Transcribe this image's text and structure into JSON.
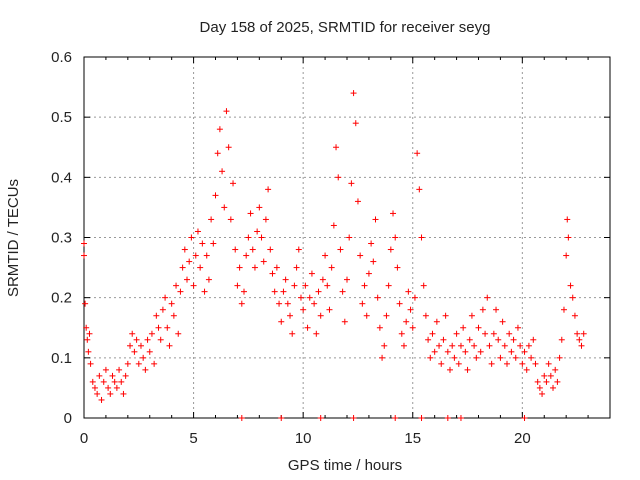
{
  "chart_data": {
    "type": "scatter",
    "title": "Day 158 of 2025, SRMTID for receiver seyg",
    "xlabel": "GPS time / hours",
    "ylabel": "SRMTID / TECUs",
    "xlim": [
      0,
      24
    ],
    "ylim": [
      0,
      0.6
    ],
    "xticks": [
      0,
      5,
      10,
      15,
      20
    ],
    "xtick_labels": [
      "0",
      "5",
      "10",
      "15",
      "20"
    ],
    "yticks": [
      0,
      0.1,
      0.2,
      0.3,
      0.4,
      0.5,
      0.6
    ],
    "ytick_labels": [
      "0",
      "0.1",
      "0.2",
      "0.3",
      "0.4",
      "0.5",
      "0.6"
    ],
    "grid": true,
    "marker": "+",
    "color": "#ff0000",
    "series": [
      {
        "name": "SRMTID",
        "points": [
          [
            0.0,
            0.27
          ],
          [
            0.0,
            0.29
          ],
          [
            0.05,
            0.19
          ],
          [
            0.1,
            0.15
          ],
          [
            0.15,
            0.13
          ],
          [
            0.2,
            0.11
          ],
          [
            0.25,
            0.14
          ],
          [
            0.3,
            0.09
          ],
          [
            0.4,
            0.06
          ],
          [
            0.5,
            0.05
          ],
          [
            0.6,
            0.04
          ],
          [
            0.7,
            0.07
          ],
          [
            0.8,
            0.03
          ],
          [
            0.9,
            0.06
          ],
          [
            1.0,
            0.08
          ],
          [
            1.1,
            0.05
          ],
          [
            1.2,
            0.04
          ],
          [
            1.3,
            0.07
          ],
          [
            1.4,
            0.06
          ],
          [
            1.5,
            0.05
          ],
          [
            1.6,
            0.08
          ],
          [
            1.7,
            0.06
          ],
          [
            1.8,
            0.04
          ],
          [
            1.9,
            0.07
          ],
          [
            2.0,
            0.09
          ],
          [
            2.1,
            0.12
          ],
          [
            2.2,
            0.14
          ],
          [
            2.3,
            0.11
          ],
          [
            2.4,
            0.13
          ],
          [
            2.5,
            0.09
          ],
          [
            2.6,
            0.12
          ],
          [
            2.7,
            0.1
          ],
          [
            2.8,
            0.08
          ],
          [
            2.9,
            0.13
          ],
          [
            3.0,
            0.11
          ],
          [
            3.1,
            0.14
          ],
          [
            3.2,
            0.09
          ],
          [
            3.3,
            0.17
          ],
          [
            3.4,
            0.15
          ],
          [
            3.5,
            0.13
          ],
          [
            3.6,
            0.18
          ],
          [
            3.7,
            0.2
          ],
          [
            3.8,
            0.15
          ],
          [
            3.9,
            0.12
          ],
          [
            4.0,
            0.19
          ],
          [
            4.1,
            0.17
          ],
          [
            4.2,
            0.22
          ],
          [
            4.3,
            0.14
          ],
          [
            4.4,
            0.21
          ],
          [
            4.5,
            0.25
          ],
          [
            4.6,
            0.28
          ],
          [
            4.7,
            0.23
          ],
          [
            4.8,
            0.26
          ],
          [
            4.9,
            0.3
          ],
          [
            5.0,
            0.22
          ],
          [
            5.1,
            0.27
          ],
          [
            5.2,
            0.31
          ],
          [
            5.3,
            0.25
          ],
          [
            5.4,
            0.29
          ],
          [
            5.5,
            0.21
          ],
          [
            5.6,
            0.27
          ],
          [
            5.7,
            0.23
          ],
          [
            5.8,
            0.33
          ],
          [
            5.9,
            0.29
          ],
          [
            6.0,
            0.37
          ],
          [
            6.1,
            0.44
          ],
          [
            6.2,
            0.48
          ],
          [
            6.3,
            0.41
          ],
          [
            6.4,
            0.35
          ],
          [
            6.5,
            0.51
          ],
          [
            6.6,
            0.45
          ],
          [
            6.7,
            0.33
          ],
          [
            6.8,
            0.39
          ],
          [
            6.9,
            0.28
          ],
          [
            7.0,
            0.22
          ],
          [
            7.1,
            0.25
          ],
          [
            7.2,
            0.19
          ],
          [
            7.3,
            0.21
          ],
          [
            7.4,
            0.27
          ],
          [
            7.5,
            0.3
          ],
          [
            7.6,
            0.34
          ],
          [
            7.7,
            0.28
          ],
          [
            7.8,
            0.25
          ],
          [
            7.9,
            0.31
          ],
          [
            8.0,
            0.35
          ],
          [
            8.1,
            0.3
          ],
          [
            8.2,
            0.26
          ],
          [
            8.3,
            0.33
          ],
          [
            8.4,
            0.38
          ],
          [
            8.5,
            0.28
          ],
          [
            8.6,
            0.24
          ],
          [
            8.7,
            0.21
          ],
          [
            8.8,
            0.25
          ],
          [
            8.9,
            0.19
          ],
          [
            9.0,
            0.16
          ],
          [
            9.1,
            0.21
          ],
          [
            9.2,
            0.23
          ],
          [
            9.3,
            0.19
          ],
          [
            9.4,
            0.17
          ],
          [
            9.5,
            0.14
          ],
          [
            9.6,
            0.22
          ],
          [
            9.7,
            0.25
          ],
          [
            9.8,
            0.28
          ],
          [
            9.9,
            0.2
          ],
          [
            10.0,
            0.18
          ],
          [
            10.1,
            0.22
          ],
          [
            10.2,
            0.15
          ],
          [
            10.3,
            0.2
          ],
          [
            10.4,
            0.24
          ],
          [
            10.5,
            0.19
          ],
          [
            10.6,
            0.14
          ],
          [
            10.7,
            0.21
          ],
          [
            10.8,
            0.17
          ],
          [
            10.9,
            0.23
          ],
          [
            11.0,
            0.27
          ],
          [
            11.1,
            0.22
          ],
          [
            11.2,
            0.18
          ],
          [
            11.3,
            0.25
          ],
          [
            11.4,
            0.32
          ],
          [
            11.5,
            0.45
          ],
          [
            11.6,
            0.4
          ],
          [
            11.7,
            0.28
          ],
          [
            11.8,
            0.21
          ],
          [
            11.9,
            0.16
          ],
          [
            12.0,
            0.23
          ],
          [
            12.1,
            0.3
          ],
          [
            12.2,
            0.39
          ],
          [
            12.3,
            0.54
          ],
          [
            12.4,
            0.49
          ],
          [
            12.5,
            0.36
          ],
          [
            12.6,
            0.27
          ],
          [
            12.7,
            0.19
          ],
          [
            12.8,
            0.22
          ],
          [
            12.9,
            0.17
          ],
          [
            13.0,
            0.24
          ],
          [
            13.1,
            0.29
          ],
          [
            13.2,
            0.26
          ],
          [
            13.3,
            0.33
          ],
          [
            13.4,
            0.2
          ],
          [
            13.5,
            0.15
          ],
          [
            13.6,
            0.1
          ],
          [
            13.7,
            0.12
          ],
          [
            13.8,
            0.17
          ],
          [
            13.9,
            0.22
          ],
          [
            14.0,
            0.28
          ],
          [
            14.1,
            0.34
          ],
          [
            14.2,
            0.3
          ],
          [
            14.3,
            0.25
          ],
          [
            14.4,
            0.19
          ],
          [
            14.5,
            0.14
          ],
          [
            14.6,
            0.12
          ],
          [
            14.7,
            0.16
          ],
          [
            14.8,
            0.21
          ],
          [
            14.9,
            0.18
          ],
          [
            15.0,
            0.15
          ],
          [
            15.1,
            0.2
          ],
          [
            15.2,
            0.44
          ],
          [
            15.3,
            0.38
          ],
          [
            15.4,
            0.3
          ],
          [
            15.5,
            0.22
          ],
          [
            15.6,
            0.17
          ],
          [
            15.7,
            0.13
          ],
          [
            15.8,
            0.1
          ],
          [
            15.9,
            0.14
          ],
          [
            16.0,
            0.11
          ],
          [
            16.1,
            0.16
          ],
          [
            16.2,
            0.12
          ],
          [
            16.3,
            0.09
          ],
          [
            16.4,
            0.13
          ],
          [
            16.5,
            0.17
          ],
          [
            16.6,
            0.11
          ],
          [
            16.7,
            0.08
          ],
          [
            16.8,
            0.12
          ],
          [
            16.9,
            0.1
          ],
          [
            17.0,
            0.14
          ],
          [
            17.1,
            0.09
          ],
          [
            17.2,
            0.12
          ],
          [
            17.3,
            0.15
          ],
          [
            17.4,
            0.11
          ],
          [
            17.5,
            0.08
          ],
          [
            17.6,
            0.13
          ],
          [
            17.7,
            0.17
          ],
          [
            17.8,
            0.12
          ],
          [
            17.9,
            0.1
          ],
          [
            18.0,
            0.15
          ],
          [
            18.1,
            0.11
          ],
          [
            18.2,
            0.18
          ],
          [
            18.3,
            0.14
          ],
          [
            18.4,
            0.2
          ],
          [
            18.5,
            0.12
          ],
          [
            18.6,
            0.09
          ],
          [
            18.7,
            0.14
          ],
          [
            18.8,
            0.18
          ],
          [
            18.9,
            0.13
          ],
          [
            19.0,
            0.1
          ],
          [
            19.1,
            0.16
          ],
          [
            19.2,
            0.12
          ],
          [
            19.3,
            0.09
          ],
          [
            19.4,
            0.14
          ],
          [
            19.5,
            0.11
          ],
          [
            19.6,
            0.13
          ],
          [
            19.7,
            0.1
          ],
          [
            19.8,
            0.15
          ],
          [
            19.9,
            0.12
          ],
          [
            20.0,
            0.09
          ],
          [
            20.1,
            0.11
          ],
          [
            20.2,
            0.08
          ],
          [
            20.3,
            0.12
          ],
          [
            20.4,
            0.1
          ],
          [
            20.5,
            0.13
          ],
          [
            20.6,
            0.09
          ],
          [
            20.7,
            0.06
          ],
          [
            20.8,
            0.05
          ],
          [
            20.9,
            0.04
          ],
          [
            21.0,
            0.07
          ],
          [
            21.1,
            0.06
          ],
          [
            21.2,
            0.09
          ],
          [
            21.3,
            0.07
          ],
          [
            21.4,
            0.05
          ],
          [
            21.5,
            0.08
          ],
          [
            21.6,
            0.06
          ],
          [
            21.7,
            0.1
          ],
          [
            21.8,
            0.13
          ],
          [
            21.9,
            0.18
          ],
          [
            22.0,
            0.27
          ],
          [
            22.05,
            0.33
          ],
          [
            22.1,
            0.3
          ],
          [
            22.2,
            0.22
          ],
          [
            22.3,
            0.2
          ],
          [
            22.4,
            0.17
          ],
          [
            22.5,
            0.14
          ],
          [
            22.6,
            0.13
          ],
          [
            22.7,
            0.12
          ],
          [
            22.8,
            0.14
          ],
          [
            7.2,
            0.0
          ],
          [
            9.0,
            0.0
          ],
          [
            10.8,
            0.0
          ],
          [
            12.3,
            0.0
          ],
          [
            14.2,
            0.0
          ],
          [
            15.4,
            0.0
          ],
          [
            16.6,
            0.0
          ],
          [
            17.2,
            0.0
          ],
          [
            20.1,
            0.0
          ]
        ]
      }
    ]
  }
}
